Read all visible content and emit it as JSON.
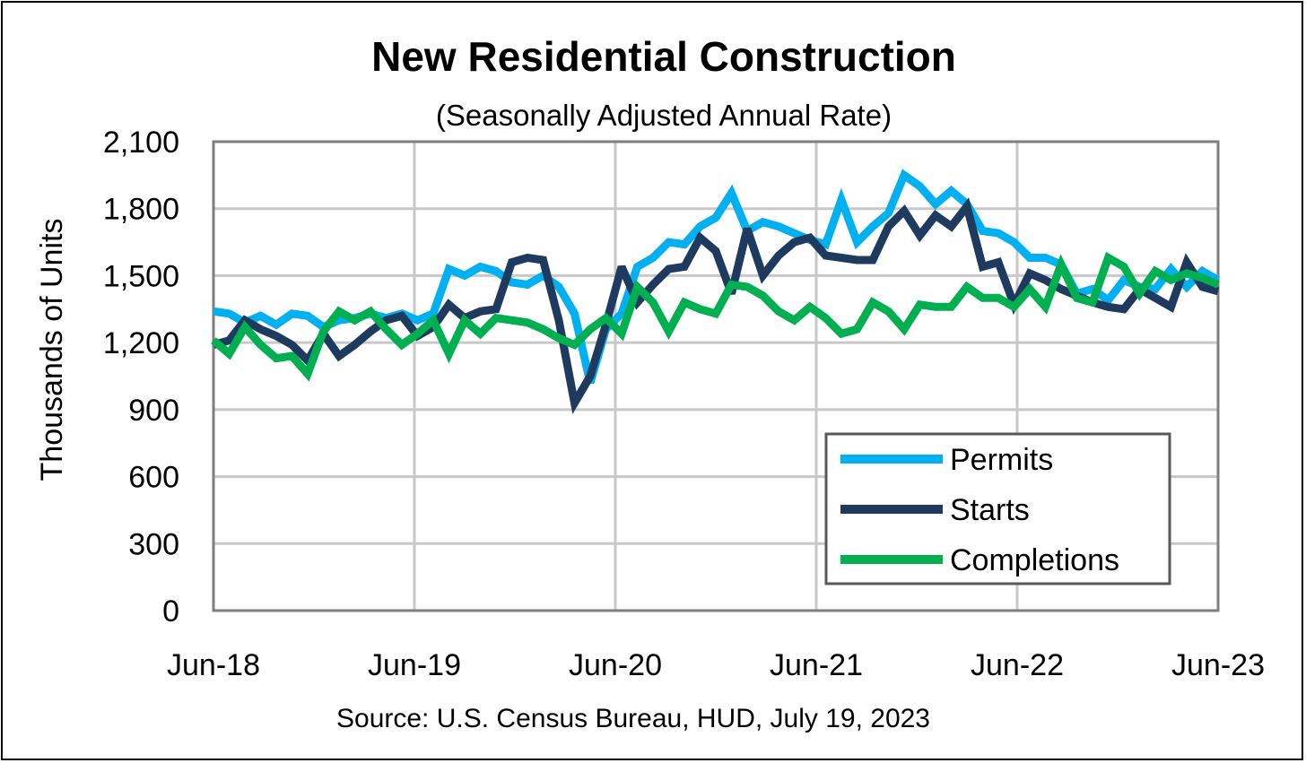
{
  "chart_data": {
    "type": "line",
    "title": "New Residential Construction",
    "subtitle": "(Seasonally Adjusted Annual Rate)",
    "ylabel": "Thousands of Units",
    "xlabel": "",
    "source": "Source:  U.S. Census Bureau, HUD, July 19, 2023",
    "ylim": [
      0,
      2100
    ],
    "yticks": [
      0,
      300,
      600,
      900,
      1200,
      1500,
      1800,
      2100
    ],
    "ytick_labels": [
      "0",
      "300",
      "600",
      "900",
      "1,200",
      "1,500",
      "1,800",
      "2,100"
    ],
    "xlim": [
      0,
      60
    ],
    "xticks": [
      0,
      12,
      24,
      36,
      48,
      60
    ],
    "xtick_labels": [
      "Jun-18",
      "Jun-19",
      "Jun-20",
      "Jun-21",
      "Jun-22",
      "Jun-23"
    ],
    "grid": true,
    "legend_position": "bottom-right",
    "series": [
      {
        "name": "Permits",
        "color": "#00b0f0",
        "values": [
          1340,
          1330,
          1290,
          1320,
          1280,
          1330,
          1320,
          1270,
          1300,
          1310,
          1330,
          1310,
          1330,
          1300,
          1330,
          1530,
          1500,
          1540,
          1520,
          1470,
          1460,
          1500,
          1450,
          1330,
          1020,
          1260,
          1330,
          1540,
          1580,
          1650,
          1640,
          1720,
          1760,
          1870,
          1700,
          1740,
          1720,
          1690,
          1660,
          1640,
          1840,
          1650,
          1720,
          1780,
          1950,
          1900,
          1820,
          1880,
          1820,
          1700,
          1690,
          1650,
          1580,
          1580,
          1550,
          1420,
          1440,
          1390,
          1480,
          1450,
          1440,
          1530,
          1450,
          1520,
          1480
        ]
      },
      {
        "name": "Starts",
        "color": "#1f3a5f",
        "values": [
          1190,
          1210,
          1300,
          1260,
          1230,
          1190,
          1120,
          1240,
          1140,
          1190,
          1250,
          1300,
          1320,
          1230,
          1270,
          1370,
          1310,
          1340,
          1350,
          1560,
          1580,
          1570,
          1300,
          930,
          1050,
          1280,
          1540,
          1380,
          1460,
          1530,
          1540,
          1670,
          1610,
          1420,
          1710,
          1500,
          1590,
          1650,
          1670,
          1590,
          1580,
          1570,
          1570,
          1720,
          1790,
          1680,
          1770,
          1720,
          1810,
          1540,
          1560,
          1370,
          1510,
          1480,
          1440,
          1410,
          1380,
          1360,
          1350,
          1440,
          1400,
          1360,
          1560,
          1450,
          1430
        ]
      },
      {
        "name": "Completions",
        "color": "#00b050",
        "values": [
          1210,
          1150,
          1270,
          1190,
          1130,
          1140,
          1060,
          1250,
          1340,
          1300,
          1340,
          1260,
          1190,
          1240,
          1300,
          1150,
          1300,
          1240,
          1310,
          1300,
          1290,
          1260,
          1220,
          1190,
          1260,
          1310,
          1240,
          1450,
          1380,
          1250,
          1380,
          1350,
          1330,
          1460,
          1450,
          1410,
          1340,
          1300,
          1360,
          1310,
          1240,
          1260,
          1380,
          1340,
          1260,
          1370,
          1360,
          1360,
          1450,
          1400,
          1400,
          1360,
          1440,
          1360,
          1550,
          1400,
          1380,
          1580,
          1540,
          1420,
          1520,
          1480,
          1510,
          1490,
          1460
        ]
      }
    ]
  }
}
